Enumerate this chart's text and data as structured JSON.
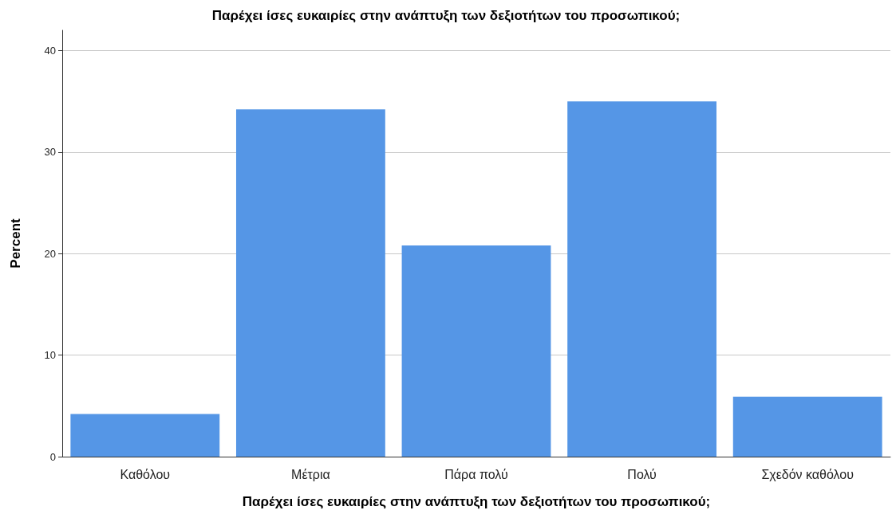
{
  "chart_data": {
    "type": "bar",
    "title": "Παρέχει ίσες ευκαιρίες στην ανάπτυξη των δεξιοτήτων του προσωπικού;",
    "xlabel": "Παρέχει ίσες ευκαιρίες στην ανάπτυξη των δεξιοτήτων του προσωπικού;",
    "ylabel": "Percent",
    "categories": [
      "Καθόλου",
      "Μέτρια",
      "Πάρα πολύ",
      "Πολύ",
      "Σχεδόν καθόλου"
    ],
    "values": [
      4.2,
      34.2,
      20.8,
      35.0,
      5.9
    ],
    "color": "#5596e6",
    "ylim": [
      0,
      42
    ],
    "yticks": [
      0,
      10,
      20,
      30,
      40
    ],
    "grid": "y"
  }
}
